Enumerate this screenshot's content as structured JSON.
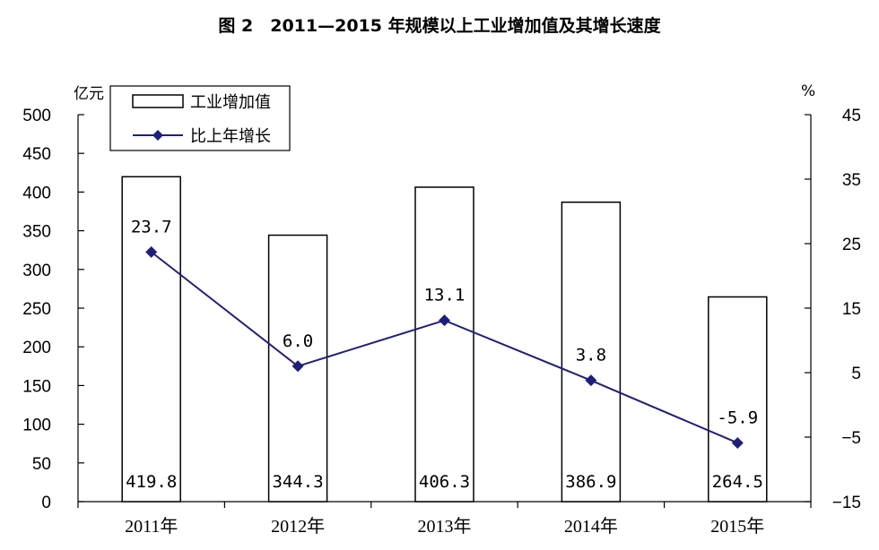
{
  "chart_data": {
    "type": "bar",
    "title": "图 2　2011—2015 年规模以上工业增加值及其增长速度",
    "categories": [
      "2011年",
      "2012年",
      "2013年",
      "2014年",
      "2015年"
    ],
    "series": [
      {
        "name": "工业增加值",
        "type": "bar",
        "axis": "left",
        "values": [
          419.8,
          344.3,
          406.3,
          386.9,
          264.5
        ],
        "labels": [
          "419.8",
          "344.3",
          "406.3",
          "386.9",
          "264.5"
        ]
      },
      {
        "name": "比上年增长",
        "type": "line",
        "axis": "right",
        "color": "#1f1f7a",
        "values": [
          23.7,
          6.0,
          13.1,
          3.8,
          -5.9
        ],
        "labels": [
          "23.7",
          "6.0",
          "13.1",
          "3.8",
          "-5.9"
        ]
      }
    ],
    "y_left": {
      "unit": "亿元",
      "ylim": [
        0,
        500
      ],
      "ticks": [
        "0",
        "50",
        "100",
        "150",
        "200",
        "250",
        "300",
        "350",
        "400",
        "450",
        "500"
      ]
    },
    "y_right": {
      "unit": "%",
      "ylim": [
        -15,
        45
      ],
      "ticks": [
        "45",
        "35",
        "25",
        "15",
        "5",
        "−5",
        "−15"
      ]
    },
    "legend": {
      "placement": "top-left"
    },
    "grid": false
  }
}
